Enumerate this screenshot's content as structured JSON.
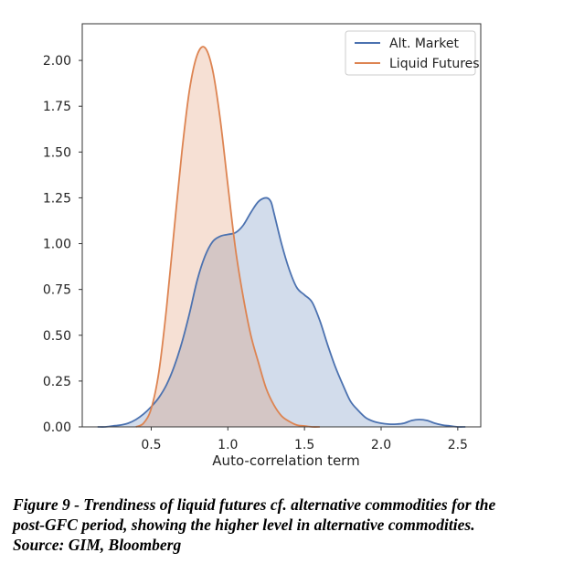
{
  "chart_data": {
    "type": "area",
    "title": "",
    "xlabel": "Auto-correlation term",
    "ylabel": "",
    "xlim": [
      0.05,
      2.65
    ],
    "ylim": [
      0.0,
      2.2
    ],
    "xticks": [
      {
        "value": 0.5,
        "label": "0.5"
      },
      {
        "value": 1.0,
        "label": "1.0"
      },
      {
        "value": 1.5,
        "label": "1.5"
      },
      {
        "value": 2.0,
        "label": "2.0"
      },
      {
        "value": 2.5,
        "label": "2.5"
      }
    ],
    "yticks": [
      {
        "value": 0.0,
        "label": "0.00"
      },
      {
        "value": 0.25,
        "label": "0.25"
      },
      {
        "value": 0.5,
        "label": "0.50"
      },
      {
        "value": 0.75,
        "label": "0.75"
      },
      {
        "value": 1.0,
        "label": "1.00"
      },
      {
        "value": 1.25,
        "label": "1.25"
      },
      {
        "value": 1.5,
        "label": "1.50"
      },
      {
        "value": 1.75,
        "label": "1.75"
      },
      {
        "value": 2.0,
        "label": "2.00"
      }
    ],
    "grid": false,
    "legend": "top-right",
    "series": [
      {
        "name": "Alt. Market",
        "color": "#4c72b0",
        "fill": "#4c72b0",
        "x": [
          0.15,
          0.2,
          0.25,
          0.3,
          0.35,
          0.4,
          0.45,
          0.5,
          0.55,
          0.6,
          0.65,
          0.7,
          0.75,
          0.8,
          0.85,
          0.9,
          0.95,
          1.0,
          1.05,
          1.1,
          1.15,
          1.2,
          1.25,
          1.28,
          1.3,
          1.35,
          1.4,
          1.45,
          1.5,
          1.55,
          1.6,
          1.65,
          1.7,
          1.75,
          1.8,
          1.85,
          1.9,
          1.95,
          2.0,
          2.05,
          2.1,
          2.15,
          2.2,
          2.25,
          2.3,
          2.35,
          2.4,
          2.45,
          2.5,
          2.55
        ],
        "y": [
          0.0,
          0.0,
          0.005,
          0.01,
          0.02,
          0.04,
          0.07,
          0.11,
          0.16,
          0.23,
          0.33,
          0.46,
          0.62,
          0.8,
          0.93,
          1.01,
          1.04,
          1.05,
          1.06,
          1.1,
          1.17,
          1.23,
          1.25,
          1.23,
          1.17,
          1.0,
          0.86,
          0.76,
          0.72,
          0.68,
          0.58,
          0.45,
          0.33,
          0.23,
          0.14,
          0.09,
          0.05,
          0.03,
          0.02,
          0.015,
          0.015,
          0.02,
          0.035,
          0.04,
          0.035,
          0.02,
          0.01,
          0.005,
          0.0,
          0.0
        ]
      },
      {
        "name": "Liquid Futures",
        "color": "#dd8452",
        "fill": "#dd8452",
        "x": [
          0.4,
          0.45,
          0.5,
          0.55,
          0.6,
          0.65,
          0.7,
          0.75,
          0.8,
          0.85,
          0.9,
          0.95,
          1.0,
          1.05,
          1.1,
          1.15,
          1.2,
          1.25,
          1.3,
          1.35,
          1.4,
          1.45,
          1.5,
          1.55,
          1.6
        ],
        "y": [
          0.0,
          0.02,
          0.1,
          0.3,
          0.65,
          1.08,
          1.5,
          1.84,
          2.03,
          2.07,
          1.95,
          1.68,
          1.32,
          0.97,
          0.71,
          0.5,
          0.35,
          0.21,
          0.12,
          0.06,
          0.03,
          0.01,
          0.005,
          0.0,
          0.0
        ]
      }
    ]
  },
  "caption": {
    "line1": "Figure 9 - Trendiness of liquid futures cf. alternative commodities for the",
    "line2": "post-GFC period, showing the higher level in alternative commodities.",
    "line3": "Source: GIM, Bloomberg"
  }
}
